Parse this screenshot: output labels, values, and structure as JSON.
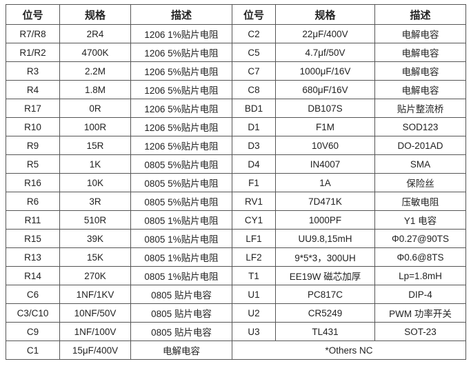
{
  "headers": [
    "位号",
    "规格",
    "描述",
    "位号",
    "规格",
    "描述"
  ],
  "left": [
    [
      "R7/R8",
      "2R4",
      "1206 1%贴片电阻"
    ],
    [
      "R1/R2",
      "4700K",
      "1206 5%贴片电阻"
    ],
    [
      "R3",
      "2.2M",
      "1206 5%贴片电阻"
    ],
    [
      "R4",
      "1.8M",
      "1206 5%贴片电阻"
    ],
    [
      "R17",
      "0R",
      "1206 5%贴片电阻"
    ],
    [
      "R10",
      "100R",
      "1206 5%贴片电阻"
    ],
    [
      "R9",
      "15R",
      "1206 5%贴片电阻"
    ],
    [
      "R5",
      "1K",
      "0805 5%贴片电阻"
    ],
    [
      "R16",
      "10K",
      "0805 5%贴片电阻"
    ],
    [
      "R6",
      "3R",
      "0805 5%贴片电阻"
    ],
    [
      "R11",
      "510R",
      "0805 1%贴片电阻"
    ],
    [
      "R15",
      "39K",
      "0805 1%贴片电阻"
    ],
    [
      "R13",
      "15K",
      "0805 1%贴片电阻"
    ],
    [
      "R14",
      "270K",
      "0805 1%贴片电阻"
    ],
    [
      "C6",
      "1NF/1KV",
      "0805 贴片电容"
    ],
    [
      "C3/C10",
      "10NF/50V",
      "0805 贴片电容"
    ],
    [
      "C9",
      "1NF/100V",
      "0805 贴片电容"
    ],
    [
      "C1",
      "15μF/400V",
      "电解电容"
    ]
  ],
  "right": [
    [
      "C2",
      "22μF/400V",
      "电解电容"
    ],
    [
      "C5",
      "4.7μf/50V",
      "电解电容"
    ],
    [
      "C7",
      "1000μF/16V",
      "电解电容"
    ],
    [
      "C8",
      "680μF/16V",
      "电解电容"
    ],
    [
      "BD1",
      "DB107S",
      "贴片整流桥"
    ],
    [
      "D1",
      "F1M",
      "SOD123"
    ],
    [
      "D3",
      "10V60",
      "DO-201AD"
    ],
    [
      "D4",
      "IN4007",
      "SMA"
    ],
    [
      "F1",
      "1A",
      "保险丝"
    ],
    [
      "RV1",
      "7D471K",
      "压敏电阻"
    ],
    [
      "CY1",
      "1000PF",
      "Y1 电容"
    ],
    [
      "LF1",
      "UU9.8,15mH",
      "Φ0.27@90TS"
    ],
    [
      "LF2",
      "9*5*3，300UH",
      "Φ0.6@8TS"
    ],
    [
      "T1",
      "EE19W 磁芯加厚",
      "Lp=1.8mH"
    ],
    [
      "U1",
      "PC817C",
      "DIP-4"
    ],
    [
      "U2",
      "CR5249",
      "PWM 功率开关"
    ],
    [
      "U3",
      "TL431",
      "SOT-23"
    ]
  ],
  "note": "*Others NC"
}
